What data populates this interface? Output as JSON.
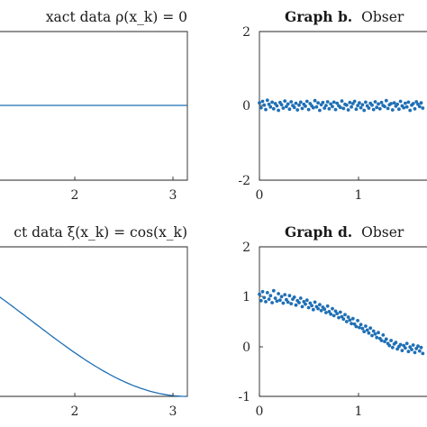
{
  "colors": {
    "series": "#1f6fb5",
    "axis": "#262626"
  },
  "chart_data": [
    {
      "panel": "a",
      "type": "line",
      "title": "xact data ρ(x_k) = 0",
      "x_ticks": [
        "2",
        "3"
      ],
      "y_ticks": [],
      "series": [
        {
          "x": [
            0,
            3.14159
          ],
          "y": [
            0,
            0
          ]
        }
      ]
    },
    {
      "panel": "b",
      "type": "scatter",
      "title_bold": "Graph b.",
      "title_rest": "Obser",
      "xlim": [
        0,
        2
      ],
      "ylim": [
        -2,
        2
      ],
      "x_ticks": [
        "0",
        "1"
      ],
      "y_ticks": [
        "2",
        "0",
        "-2"
      ],
      "series": [
        {
          "x": [
            0.0,
            0.016,
            0.032,
            0.048,
            0.064,
            0.08,
            0.096,
            0.112,
            0.128,
            0.144,
            0.16,
            0.176,
            0.192,
            0.208,
            0.224,
            0.24,
            0.256,
            0.272,
            0.288,
            0.304,
            0.32,
            0.336,
            0.352,
            0.368,
            0.384,
            0.4,
            0.416,
            0.432,
            0.448,
            0.464,
            0.48,
            0.496,
            0.512,
            0.528,
            0.544,
            0.56,
            0.576,
            0.592,
            0.608,
            0.624,
            0.64,
            0.656,
            0.672,
            0.688,
            0.704,
            0.72,
            0.736,
            0.752,
            0.768,
            0.784,
            0.8,
            0.816,
            0.832,
            0.848,
            0.864,
            0.88,
            0.896,
            0.912,
            0.928,
            0.944,
            0.96,
            0.976,
            0.992,
            1.008,
            1.024,
            1.04,
            1.056,
            1.072,
            1.088,
            1.104,
            1.12,
            1.136,
            1.152,
            1.168,
            1.184,
            1.2,
            1.216,
            1.232,
            1.248,
            1.264,
            1.28,
            1.296,
            1.312,
            1.328,
            1.344,
            1.36,
            1.376,
            1.392,
            1.408,
            1.424,
            1.44,
            1.456,
            1.472,
            1.488,
            1.504,
            1.52,
            1.536,
            1.552,
            1.568,
            1.584,
            1.6,
            1.616,
            1.632,
            1.648
          ],
          "y": [
            0.08,
            -0.05,
            0.12,
            0.02,
            -0.1,
            0.15,
            0.04,
            -0.03,
            0.1,
            -0.08,
            0.06,
            0.0,
            -0.12,
            0.09,
            0.03,
            -0.06,
            0.13,
            -0.02,
            0.05,
            -0.09,
            0.11,
            0.01,
            -0.04,
            0.07,
            -0.11,
            0.02,
            0.1,
            -0.07,
            0.04,
            -0.01,
            0.12,
            -0.1,
            0.06,
            0.0,
            -0.05,
            0.14,
            -0.03,
            0.08,
            -0.12,
            0.03,
            0.09,
            -0.06,
            0.01,
            0.11,
            -0.08,
            0.05,
            -0.02,
            0.1,
            -0.1,
            0.07,
            0.0,
            -0.04,
            0.13,
            -0.07,
            0.04,
            0.02,
            -0.11,
            0.09,
            -0.03,
            0.06,
            0.12,
            -0.09,
            0.01,
            0.08,
            -0.05,
            0.03,
            -0.12,
            0.1,
            0.0,
            -0.06,
            0.07,
            0.02,
            -0.1,
            0.11,
            -0.04,
            0.05,
            -0.08,
            0.09,
            0.01,
            -0.02,
            0.14,
            -0.07,
            0.03,
            0.06,
            -0.11,
            0.08,
            -0.01,
            0.04,
            -0.09,
            0.12,
            0.0,
            -0.05,
            0.07,
            -0.03,
            0.1,
            -0.12,
            0.02,
            0.06,
            -0.08,
            0.11,
            0.04,
            -0.02,
            0.08,
            -0.06
          ]
        }
      ]
    },
    {
      "panel": "c",
      "type": "line",
      "title": "ct data ξ(x_k) = cos(x_k)",
      "x_ticks": [
        "2",
        "3"
      ],
      "y_ticks": [],
      "series": [
        {
          "x": [
            0,
            3.14159
          ],
          "y": [
            1,
            -1
          ]
        }
      ]
    },
    {
      "panel": "d",
      "type": "scatter",
      "title_bold": "Graph d.",
      "title_rest": "Obser",
      "xlim": [
        0,
        2
      ],
      "ylim": [
        -1,
        2
      ],
      "x_ticks": [
        "0",
        "1"
      ],
      "y_ticks": [
        "2",
        "1",
        "0",
        "-1"
      ],
      "series": [
        {
          "x": [
            0.0,
            0.016,
            0.032,
            0.048,
            0.064,
            0.08,
            0.096,
            0.112,
            0.128,
            0.144,
            0.16,
            0.176,
            0.192,
            0.208,
            0.224,
            0.24,
            0.256,
            0.272,
            0.288,
            0.304,
            0.32,
            0.336,
            0.352,
            0.368,
            0.384,
            0.4,
            0.416,
            0.432,
            0.448,
            0.464,
            0.48,
            0.496,
            0.512,
            0.528,
            0.544,
            0.56,
            0.576,
            0.592,
            0.608,
            0.624,
            0.64,
            0.656,
            0.672,
            0.688,
            0.704,
            0.72,
            0.736,
            0.752,
            0.768,
            0.784,
            0.8,
            0.816,
            0.832,
            0.848,
            0.864,
            0.88,
            0.896,
            0.912,
            0.928,
            0.944,
            0.96,
            0.976,
            0.992,
            1.008,
            1.024,
            1.04,
            1.056,
            1.072,
            1.088,
            1.104,
            1.12,
            1.136,
            1.152,
            1.168,
            1.184,
            1.2,
            1.216,
            1.232,
            1.248,
            1.264,
            1.28,
            1.296,
            1.312,
            1.328,
            1.344,
            1.36,
            1.376,
            1.392,
            1.408,
            1.424,
            1.44,
            1.456,
            1.472,
            1.488,
            1.504,
            1.52,
            1.536,
            1.552,
            1.568,
            1.584,
            1.6,
            1.616,
            1.632,
            1.648
          ],
          "y": [
            1.05,
            0.92,
            1.1,
            0.98,
            0.9,
            1.08,
            0.95,
            1.02,
            0.88,
            1.12,
            0.97,
            0.91,
            1.06,
            0.93,
            1.0,
            0.87,
            1.04,
            0.94,
            0.89,
            1.02,
            0.86,
            0.95,
            0.99,
            0.83,
            0.92,
            0.88,
            0.97,
            0.8,
            0.9,
            0.85,
            0.93,
            0.78,
            0.87,
            0.82,
            0.74,
            0.89,
            0.8,
            0.76,
            0.84,
            0.72,
            0.79,
            0.75,
            0.68,
            0.81,
            0.7,
            0.65,
            0.76,
            0.62,
            0.71,
            0.66,
            0.58,
            0.69,
            0.6,
            0.55,
            0.64,
            0.5,
            0.59,
            0.53,
            0.46,
            0.56,
            0.45,
            0.4,
            0.52,
            0.38,
            0.44,
            0.36,
            0.3,
            0.41,
            0.33,
            0.27,
            0.37,
            0.22,
            0.31,
            0.25,
            0.18,
            0.28,
            0.16,
            0.12,
            0.23,
            0.1,
            0.15,
            0.06,
            0.02,
            0.12,
            -0.02,
            0.05,
            0.08,
            -0.05,
            0.0,
            0.04,
            -0.08,
            0.02,
            -0.03,
            0.06,
            -0.1,
            -0.01,
            -0.06,
            0.03,
            -0.12,
            -0.04,
            0.01,
            -0.09,
            -0.02,
            -0.14
          ]
        }
      ]
    }
  ]
}
